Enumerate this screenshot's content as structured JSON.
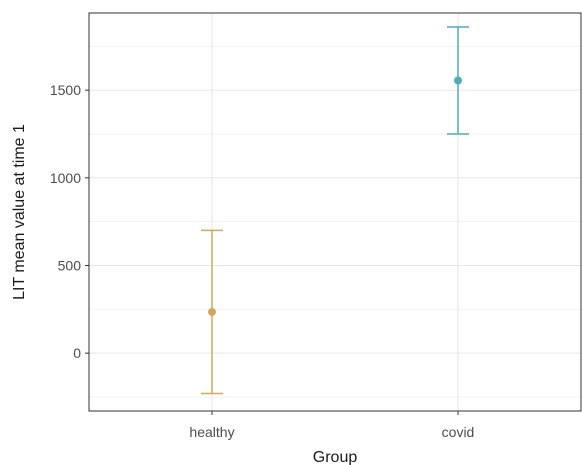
{
  "chart_data": {
    "type": "scatter",
    "subtype": "point-with-errorbars",
    "title": "",
    "xlabel": "Group",
    "ylabel": "LIT mean value at time 1",
    "categories": [
      "healthy",
      "covid"
    ],
    "points": [
      {
        "category": "healthy",
        "y": 235,
        "ymin": -230,
        "ymax": 700,
        "color": "#D4A85A"
      },
      {
        "category": "covid",
        "y": 1555,
        "ymin": 1250,
        "ymax": 1860,
        "color": "#4FADB5"
      }
    ],
    "yticks": [
      0,
      500,
      1000,
      1500
    ],
    "ylim": [
      -330,
      1940
    ],
    "grid": true,
    "legend": "none"
  }
}
